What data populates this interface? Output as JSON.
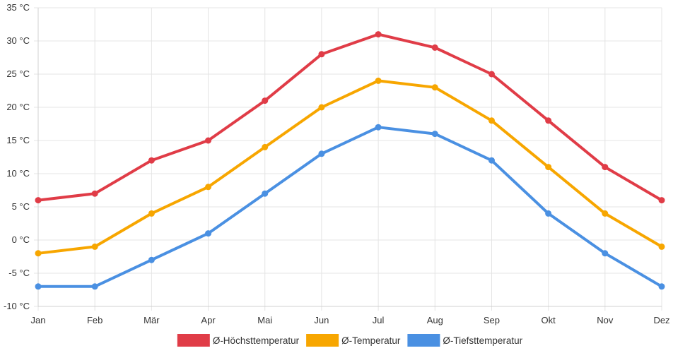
{
  "chart_data": {
    "type": "line",
    "title": "",
    "xlabel": "",
    "ylabel": "",
    "categories": [
      "Jan",
      "Feb",
      "Mär",
      "Apr",
      "Mai",
      "Jun",
      "Jul",
      "Aug",
      "Sep",
      "Okt",
      "Nov",
      "Dez"
    ],
    "ylim": [
      -10,
      35
    ],
    "ytick_step": 5,
    "y_unit": " °C",
    "grid": true,
    "legend_position": "bottom",
    "series": [
      {
        "name": "Ø-Höchsttemperatur",
        "color": "#e03c47",
        "values": [
          6,
          7,
          12,
          15,
          21,
          28,
          31,
          29,
          25,
          18,
          11,
          6
        ]
      },
      {
        "name": "Ø-Temperatur",
        "color": "#f7a600",
        "values": [
          -2,
          -1,
          4,
          8,
          14,
          20,
          24,
          23,
          18,
          11,
          4,
          -1
        ]
      },
      {
        "name": "Ø-Tiefsttemperatur",
        "color": "#4a90e2",
        "values": [
          -7,
          -7,
          -3,
          1,
          7,
          13,
          17,
          16,
          12,
          4,
          -2,
          -7
        ]
      }
    ]
  }
}
